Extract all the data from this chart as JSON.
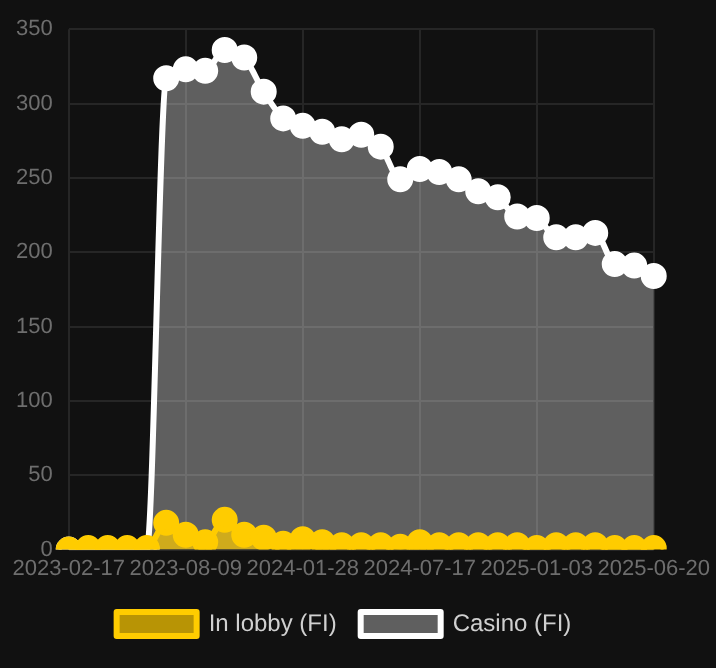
{
  "chart_data": {
    "type": "area",
    "categories": [
      "2023-02-17",
      null,
      null,
      null,
      null,
      null,
      "2023-08-09",
      null,
      null,
      null,
      null,
      null,
      "2024-01-28",
      null,
      null,
      null,
      null,
      null,
      "2024-07-17",
      null,
      null,
      null,
      null,
      null,
      "2025-01-03",
      null,
      null,
      null,
      null,
      null,
      "2025-06-20"
    ],
    "series": [
      {
        "name": "In lobby (FI)",
        "color": "#ffcc00",
        "values": [
          0,
          1,
          1,
          1,
          1,
          18,
          10,
          5,
          20,
          10,
          8,
          4,
          7,
          5,
          3,
          3,
          3,
          2,
          5,
          3,
          3,
          3,
          3,
          3,
          1,
          3,
          3,
          3,
          1,
          1,
          1
        ]
      },
      {
        "name": "Casino (FI)",
        "color": "#ffffff",
        "values": [
          0,
          0,
          0,
          0,
          0,
          317,
          323,
          322,
          336,
          331,
          308,
          290,
          285,
          281,
          276,
          279,
          271,
          249,
          256,
          254,
          249,
          241,
          237,
          224,
          223,
          210,
          210,
          213,
          192,
          191,
          184
        ]
      }
    ],
    "ylim": [
      0,
      350
    ],
    "yticks": [
      0,
      50,
      100,
      150,
      200,
      250,
      300,
      350
    ],
    "grid": true,
    "legend": "bottom",
    "marker": "circle"
  }
}
